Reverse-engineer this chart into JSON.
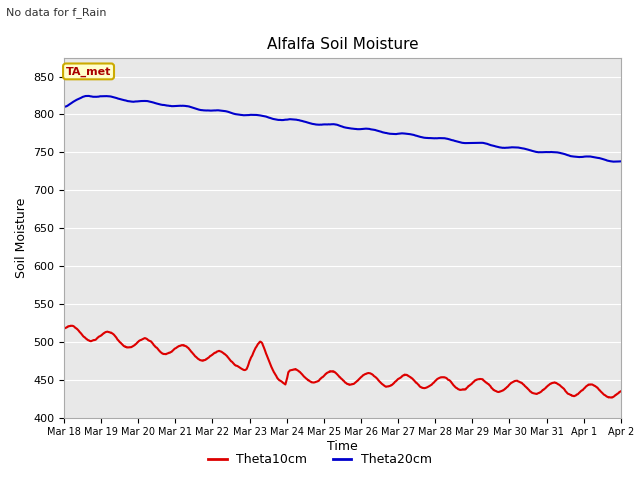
{
  "title": "Alfalfa Soil Moisture",
  "top_left_text": "No data for f_Rain",
  "xlabel": "Time",
  "ylabel": "Soil Moisture",
  "ylim": [
    400,
    875
  ],
  "yticks": [
    400,
    450,
    500,
    550,
    600,
    650,
    700,
    750,
    800,
    850
  ],
  "x_labels": [
    "Mar 18",
    "Mar 19",
    "Mar 20",
    "Mar 21",
    "Mar 22",
    "Mar 23",
    "Mar 24",
    "Mar 25",
    "Mar 26",
    "Mar 27",
    "Mar 28",
    "Mar 29",
    "Mar 30",
    "Mar 31",
    "Apr 1",
    "Apr 2"
  ],
  "legend_labels": [
    "Theta10cm",
    "Theta20cm"
  ],
  "legend_colors": [
    "#dd0000",
    "#0000cc"
  ],
  "bg_color": "#dddddd",
  "plot_bg_color": "#e8e8e8",
  "annotation_label": "TA_met",
  "annotation_color": "#aa0000",
  "annotation_bg": "#ffffcc",
  "annotation_edge": "#ccaa00",
  "grid_color": "#ffffff",
  "title_fontsize": 11,
  "label_fontsize": 9,
  "tick_fontsize": 8
}
